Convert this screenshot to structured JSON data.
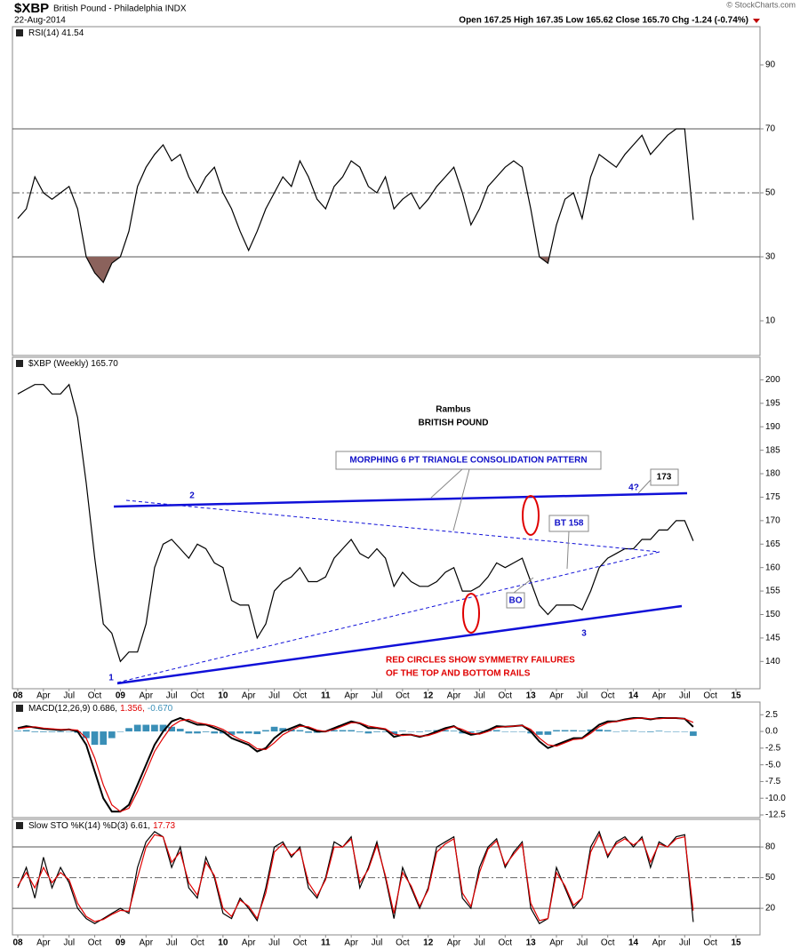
{
  "header": {
    "symbol": "$XBP",
    "name": "British Pound - Philadelphia INDX",
    "date": "22-Aug-2014",
    "quote": "Open 167.25 High 167.35 Low 165.62 Close 165.70 Chg -1.24 (-0.74%)",
    "credit": "© StockCharts.com"
  },
  "chart_data": [
    {
      "type": "line",
      "legend": [
        {
          "text": "RSI(14) 41.54",
          "color": "#000000"
        }
      ],
      "series": [
        {
          "color": "#000000",
          "values": [
            42,
            45,
            55,
            50,
            48,
            50,
            52,
            45,
            30,
            25,
            22,
            28,
            30,
            38,
            52,
            58,
            62,
            65,
            60,
            62,
            55,
            50,
            55,
            58,
            50,
            45,
            38,
            32,
            38,
            45,
            50,
            55,
            52,
            60,
            55,
            48,
            45,
            52,
            55,
            60,
            58,
            52,
            50,
            55,
            45,
            48,
            50,
            45,
            48,
            52,
            55,
            58,
            50,
            40,
            45,
            52,
            55,
            58,
            60,
            58,
            45,
            30,
            28,
            40,
            48,
            50,
            42,
            55,
            62,
            60,
            58,
            62,
            65,
            68,
            62,
            65,
            68,
            70,
            70,
            41.54,
            null,
            null,
            null,
            null,
            null
          ]
        }
      ],
      "ylim": [
        0,
        100
      ],
      "yticks": [
        10,
        30,
        50,
        70,
        90
      ],
      "solid_lines": [
        30,
        70
      ],
      "dashed_lines": [
        50
      ],
      "fill_below": 30,
      "fill_color": "#8b625c"
    },
    {
      "type": "line",
      "legend": [
        {
          "text": "$XBP (Weekly) 165.70",
          "color": "#000000"
        }
      ],
      "categories": [
        "08",
        null,
        null,
        "Apr",
        null,
        null,
        "Jul",
        null,
        null,
        "Oct",
        null,
        null,
        "09",
        null,
        null,
        "Apr",
        null,
        null,
        "Jul",
        null,
        null,
        "Oct",
        null,
        null,
        "10",
        null,
        null,
        "Apr",
        null,
        null,
        "Jul",
        null,
        null,
        "Oct",
        null,
        null,
        "11",
        null,
        null,
        "Apr",
        null,
        null,
        "Jul",
        null,
        null,
        "Oct",
        null,
        null,
        "12",
        null,
        null,
        "Apr",
        null,
        null,
        "Jul",
        null,
        null,
        "Oct",
        null,
        null,
        "13",
        null,
        null,
        "Apr",
        null,
        null,
        "Jul",
        null,
        null,
        "Oct",
        null,
        null,
        "14",
        null,
        null,
        "Apr",
        null,
        null,
        "Jul",
        null,
        null,
        "Oct",
        null,
        null,
        "15"
      ],
      "series": [
        {
          "color": "#000000",
          "values": [
            197,
            198,
            199,
            199,
            197,
            197,
            199,
            192,
            178,
            162,
            148,
            146,
            140,
            142,
            142,
            148,
            160,
            165,
            166,
            164,
            162,
            165,
            164,
            161,
            160,
            153,
            152,
            152,
            145,
            148,
            155,
            157,
            158,
            160,
            157,
            157,
            158,
            162,
            164,
            166,
            163,
            162,
            164,
            162,
            156,
            159,
            157,
            156,
            156,
            157,
            159,
            160,
            155,
            155,
            156,
            158,
            161,
            160,
            161,
            162,
            157,
            152,
            150,
            152,
            152,
            152,
            151,
            155,
            160,
            162,
            163,
            164,
            164,
            166,
            166,
            168,
            168,
            170,
            170,
            165.7,
            null,
            null,
            null,
            null,
            null
          ]
        }
      ],
      "ylim": [
        134,
        205
      ],
      "yticks": [
        140,
        145,
        150,
        155,
        160,
        165,
        170,
        175,
        180,
        185,
        190,
        195,
        200
      ],
      "annotations": [
        "Rambus",
        "BRITISH POUND",
        "MORPHING 6 PT TRIANGLE CONSOLIDATION PATTERN",
        "2",
        "4?",
        "173",
        "BT 158",
        "BO",
        "1",
        "3",
        "RED CIRCLES SHOW SYMMETRY FAILURES",
        "OF THE TOP AND BOTTOM RAILS"
      ]
    },
    {
      "type": "macd",
      "legend": [
        {
          "text": "MACD(12,26,9) 0.686,",
          "color": "#000000"
        },
        {
          "text": "1.356,",
          "color": "#e00000"
        },
        {
          "text": "-0.670",
          "color": "#3a8fb7"
        }
      ],
      "series": [
        {
          "kind": "line",
          "color": "#000000",
          "values": [
            0.5,
            0.8,
            0.6,
            0.4,
            0.3,
            0.2,
            0.3,
            0,
            -2,
            -6,
            -10,
            -12,
            -12,
            -11,
            -8,
            -5,
            -2,
            0,
            1.5,
            2,
            1.5,
            1,
            1,
            0.5,
            0,
            -1,
            -1.5,
            -2,
            -3,
            -2.5,
            -1,
            0,
            0.5,
            1,
            0.5,
            0,
            0,
            0.5,
            1,
            1.5,
            1.2,
            0.5,
            0.5,
            0.3,
            -0.8,
            -0.5,
            -0.5,
            -0.8,
            -0.5,
            0,
            0.5,
            0.8,
            0,
            -0.5,
            -0.3,
            0.2,
            0.8,
            0.7,
            0.8,
            0.9,
            0,
            -1.5,
            -2.5,
            -2,
            -1.5,
            -1,
            -1,
            0,
            1,
            1.5,
            1.5,
            1.8,
            2,
            2,
            1.8,
            2,
            2,
            2,
            1.9,
            0.686,
            null,
            null,
            null,
            null,
            null
          ]
        },
        {
          "kind": "line",
          "color": "#e00000",
          "values": [
            0.4,
            0.6,
            0.7,
            0.5,
            0.4,
            0.3,
            0.3,
            0.2,
            -1,
            -4,
            -8,
            -11,
            -12,
            -11.5,
            -9,
            -6,
            -3,
            -1,
            0.8,
            1.6,
            1.8,
            1.3,
            1.1,
            0.8,
            0.3,
            -0.5,
            -1.2,
            -1.7,
            -2.6,
            -2.7,
            -1.7,
            -0.5,
            0.2,
            0.8,
            0.7,
            0.2,
            0,
            0.3,
            0.8,
            1.3,
            1.3,
            0.8,
            0.6,
            0.4,
            -0.4,
            -0.6,
            -0.5,
            -0.7,
            -0.6,
            -0.2,
            0.3,
            0.7,
            0.3,
            -0.3,
            -0.4,
            0,
            0.6,
            0.7,
            0.8,
            0.9,
            0.3,
            -1,
            -2,
            -2.2,
            -1.7,
            -1.2,
            -1.1,
            -0.3,
            0.7,
            1.3,
            1.5,
            1.7,
            1.9,
            2,
            1.9,
            1.9,
            2,
            2,
            1.9,
            1.356,
            null,
            null,
            null,
            null,
            null
          ]
        },
        {
          "kind": "histogram",
          "color": "#3a8fb7",
          "values": [
            0.1,
            0.2,
            -0.1,
            -0.1,
            -0.1,
            -0.1,
            0,
            -0.2,
            -1,
            -2,
            -2,
            -1,
            0,
            0.5,
            1,
            1,
            1,
            1,
            0.7,
            0.4,
            -0.3,
            -0.3,
            -0.1,
            -0.3,
            -0.3,
            -0.5,
            -0.3,
            -0.3,
            -0.4,
            0.2,
            0.7,
            0.5,
            0.3,
            0.2,
            -0.2,
            -0.2,
            0,
            0.2,
            0.2,
            0.2,
            -0.1,
            -0.3,
            -0.1,
            -0.1,
            -0.4,
            0.1,
            0,
            -0.1,
            0.1,
            0.2,
            0.2,
            0.1,
            -0.3,
            -0.2,
            0.1,
            0.2,
            0.2,
            0,
            0,
            0,
            -0.3,
            -0.5,
            -0.5,
            0.2,
            0.2,
            0.2,
            0.1,
            0.3,
            0.3,
            0.2,
            0,
            0.1,
            0.1,
            0,
            -0.1,
            0.1,
            0,
            0,
            0,
            -0.67,
            null,
            null,
            null,
            null,
            null
          ]
        }
      ],
      "ylim": [
        -12.9,
        4.4
      ],
      "yticks": [
        2.5,
        {
          "value": 0,
          "label": "0.0"
        },
        -2.5,
        {
          "value": -5,
          "label": "-5.0"
        },
        -7.5,
        {
          "value": -10,
          "label": "-10.0"
        },
        -12.5
      ]
    },
    {
      "type": "line",
      "legend": [
        {
          "text": "Slow STO %K(14) %D(3) 6.61,",
          "color": "#000000"
        },
        {
          "text": "17.73",
          "color": "#e00000"
        }
      ],
      "categories": [
        "08",
        null,
        null,
        "Apr",
        null,
        null,
        "Jul",
        null,
        null,
        "Oct",
        null,
        null,
        "09",
        null,
        null,
        "Apr",
        null,
        null,
        "Jul",
        null,
        null,
        "Oct",
        null,
        null,
        "10",
        null,
        null,
        "Apr",
        null,
        null,
        "Jul",
        null,
        null,
        "Oct",
        null,
        null,
        "11",
        null,
        null,
        "Apr",
        null,
        null,
        "Jul",
        null,
        null,
        "Oct",
        null,
        null,
        "12",
        null,
        null,
        "Apr",
        null,
        null,
        "Jul",
        null,
        null,
        "Oct",
        null,
        null,
        "13",
        null,
        null,
        "Apr",
        null,
        null,
        "Jul",
        null,
        null,
        "Oct",
        null,
        null,
        "14",
        null,
        null,
        "Apr",
        null,
        null,
        "Jul",
        null,
        null,
        "Oct",
        null,
        null,
        "15"
      ],
      "series": [
        {
          "color": "#000000",
          "values": [
            40,
            60,
            30,
            70,
            40,
            60,
            45,
            20,
            10,
            5,
            10,
            15,
            20,
            15,
            60,
            85,
            95,
            90,
            60,
            80,
            40,
            30,
            70,
            50,
            15,
            10,
            30,
            20,
            8,
            40,
            80,
            85,
            70,
            80,
            40,
            30,
            50,
            85,
            80,
            90,
            40,
            60,
            85,
            50,
            10,
            60,
            40,
            20,
            40,
            80,
            85,
            90,
            30,
            20,
            60,
            80,
            88,
            60,
            75,
            85,
            20,
            5,
            10,
            60,
            40,
            20,
            30,
            80,
            95,
            70,
            85,
            90,
            80,
            90,
            60,
            85,
            80,
            90,
            92,
            6.61,
            null,
            null,
            null,
            null,
            null
          ]
        },
        {
          "color": "#e00000",
          "values": [
            42,
            55,
            40,
            60,
            45,
            55,
            48,
            25,
            12,
            7,
            9,
            14,
            18,
            17,
            50,
            80,
            92,
            90,
            65,
            75,
            45,
            33,
            65,
            52,
            20,
            12,
            28,
            22,
            10,
            35,
            75,
            83,
            72,
            78,
            45,
            32,
            48,
            80,
            80,
            88,
            45,
            58,
            82,
            52,
            15,
            55,
            42,
            22,
            38,
            75,
            83,
            88,
            35,
            22,
            55,
            78,
            86,
            62,
            73,
            83,
            25,
            8,
            10,
            55,
            42,
            23,
            30,
            75,
            92,
            72,
            83,
            88,
            82,
            88,
            65,
            83,
            80,
            88,
            90,
            17.73,
            null,
            null,
            null,
            null,
            null
          ]
        }
      ],
      "ylim": [
        -6,
        107
      ],
      "yticks": [
        20,
        50,
        80
      ],
      "solid_lines": [
        20,
        80
      ],
      "dashed_lines": [
        50
      ]
    }
  ]
}
